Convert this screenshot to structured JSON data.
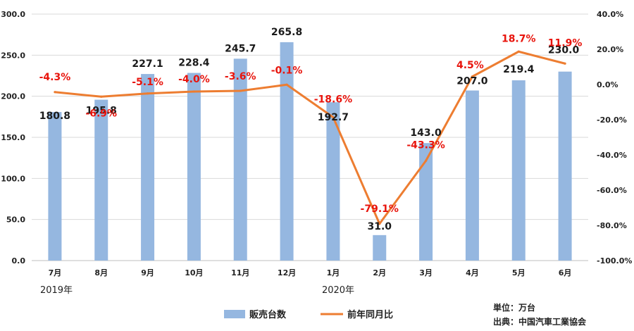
{
  "chart_data": {
    "type": "bar+line",
    "categories": [
      "7月",
      "8月",
      "9月",
      "10月",
      "11月",
      "12月",
      "1月",
      "2月",
      "3月",
      "4月",
      "5月",
      "6月"
    ],
    "year_labels": [
      {
        "text": "2019年",
        "category_index": 0
      },
      {
        "text": "2020年",
        "category_index": 6
      }
    ],
    "series": [
      {
        "name": "販売台数",
        "type": "bar",
        "axis": "left",
        "color": "#95b7e0",
        "values": [
          180.8,
          195.8,
          227.1,
          228.4,
          245.7,
          265.8,
          192.7,
          31.0,
          143.0,
          207.0,
          219.4,
          230.0
        ],
        "labels": [
          "180.8",
          "195.8",
          "227.1",
          "228.4",
          "245.7",
          "265.8",
          "192.7",
          "31.0",
          "143.0",
          "207.0",
          "219.4",
          "230.0"
        ]
      },
      {
        "name": "前年同月比",
        "type": "line",
        "axis": "right",
        "color": "#ed7d31",
        "label_color": "#e8140c",
        "values": [
          -4.3,
          -6.9,
          -5.1,
          -4.0,
          -3.6,
          -0.1,
          -18.6,
          -79.1,
          -43.3,
          4.5,
          18.7,
          11.9
        ],
        "labels": [
          "-4.3%",
          "-6.9%",
          "-5.1%",
          "-4.0%",
          "-3.6%",
          "-0.1%",
          "-18.6%",
          "-79.1%",
          "-43.3%",
          "4.5%",
          "18.7%",
          "11.9%"
        ]
      }
    ],
    "left_axis": {
      "min": 0,
      "max": 300,
      "ticks": [
        0,
        50,
        100,
        150,
        200,
        250,
        300
      ],
      "tick_labels": [
        "0.0",
        "50.0",
        "100.0",
        "150.0",
        "200.0",
        "250.0",
        "300.0"
      ]
    },
    "right_axis": {
      "min": -100,
      "max": 40,
      "ticks": [
        -100,
        -80,
        -60,
        -40,
        -20,
        0,
        20,
        40
      ],
      "tick_labels": [
        "-100.0%",
        "-80.0%",
        "-60.0%",
        "-40.0%",
        "-20.0%",
        "0.0%",
        "20.0%",
        "40.0%"
      ]
    },
    "grid": true,
    "legend_position": "bottom-center",
    "notes": [
      "単位：万台",
      "出典：中国汽車工業協会"
    ]
  }
}
